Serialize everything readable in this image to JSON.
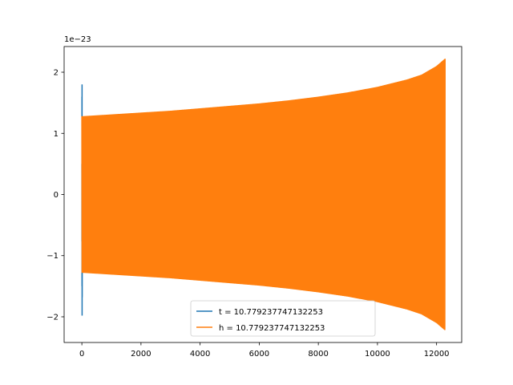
{
  "chart_data": {
    "type": "line",
    "title": "",
    "xlabel": "",
    "ylabel": "",
    "y_offset_label": "1e−23",
    "xlim": [
      -600,
      12850
    ],
    "ylim": [
      -2.42,
      2.42
    ],
    "xticks": [
      0,
      2000,
      4000,
      6000,
      8000,
      10000,
      12000
    ],
    "xtick_labels": [
      "0",
      "2000",
      "4000",
      "6000",
      "8000",
      "10000",
      "12000"
    ],
    "yticks": [
      -2,
      -1,
      0,
      1,
      2
    ],
    "ytick_labels": [
      "−2",
      "−1",
      "0",
      "1",
      "2"
    ],
    "grid": false,
    "legend_position": "lower center",
    "series": [
      {
        "name": "t = 10.779237747132253",
        "color": "#1f77b4",
        "envelope": {
          "x": [
            0,
            5,
            10,
            15,
            20
          ],
          "upper": [
            0.5,
            2.15,
            1.1,
            0.3,
            0.05
          ],
          "lower": [
            -0.4,
            -1.5,
            -2.22,
            -0.6,
            -0.05
          ]
        }
      },
      {
        "name": "h = 10.779237747132253",
        "color": "#ff7f0e",
        "envelope": {
          "x": [
            0,
            1000,
            2000,
            3000,
            4000,
            5000,
            6000,
            7000,
            8000,
            9000,
            10000,
            11000,
            11500,
            12000,
            12288
          ],
          "upper": [
            1.28,
            1.31,
            1.34,
            1.37,
            1.41,
            1.45,
            1.49,
            1.54,
            1.6,
            1.67,
            1.76,
            1.88,
            1.96,
            2.1,
            2.22
          ],
          "lower": [
            -1.28,
            -1.31,
            -1.34,
            -1.37,
            -1.41,
            -1.45,
            -1.49,
            -1.54,
            -1.6,
            -1.67,
            -1.76,
            -1.88,
            -1.96,
            -2.1,
            -2.22
          ]
        }
      }
    ]
  }
}
